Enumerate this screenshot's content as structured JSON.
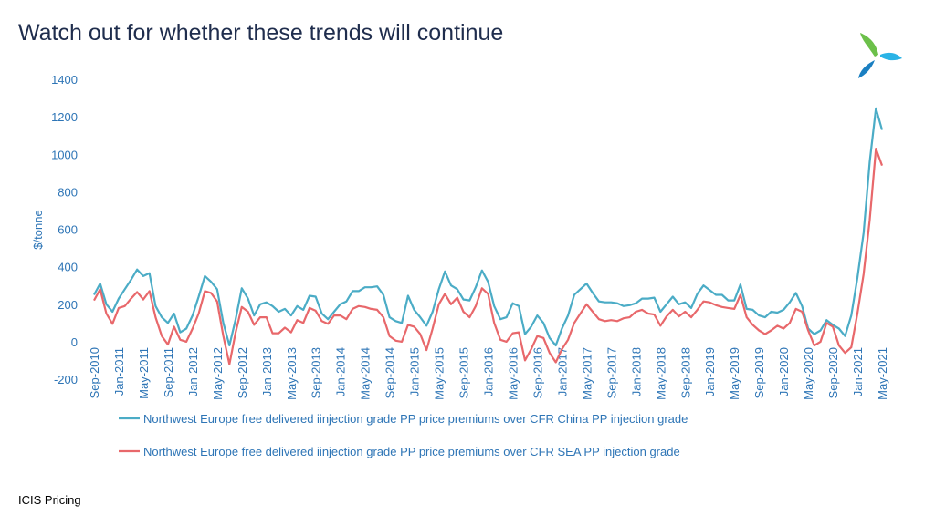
{
  "title": "Watch out for whether these trends will continue",
  "footer": "ICIS Pricing",
  "chart_data": {
    "type": "line",
    "ylabel": "$/tonne",
    "categories": [
      "Sep-2010",
      null,
      null,
      null,
      "Jan-2011",
      null,
      null,
      null,
      "May-2011",
      null,
      null,
      null,
      "Sep-2011",
      null,
      null,
      null,
      "Jan-2012",
      null,
      null,
      null,
      "May-2012",
      null,
      null,
      null,
      "Sep-2012",
      null,
      null,
      null,
      "Jan-2013",
      null,
      null,
      null,
      "May-2013",
      null,
      null,
      null,
      "Sep-2013",
      null,
      null,
      null,
      "Jan-2014",
      null,
      null,
      null,
      "May-2014",
      null,
      null,
      null,
      "Sep-2014",
      null,
      null,
      null,
      "Jan-2015",
      null,
      null,
      null,
      "May-2015",
      null,
      null,
      null,
      "Sep-2015",
      null,
      null,
      null,
      "Jan-2016",
      null,
      null,
      null,
      "May-2016",
      null,
      null,
      null,
      "Sep-2016",
      null,
      null,
      null,
      "Jan-2017",
      null,
      null,
      null,
      "May-2017",
      null,
      null,
      null,
      "Sep-2017",
      null,
      null,
      null,
      "Jan-2018",
      null,
      null,
      null,
      "May-2018",
      null,
      null,
      null,
      "Sep-2018",
      null,
      null,
      null,
      "Jan-2019",
      null,
      null,
      null,
      "May-2019",
      null,
      null,
      null,
      "Sep-2019",
      null,
      null,
      null,
      "Jan-2020",
      null,
      null,
      null,
      "May-2020",
      null,
      null,
      null,
      "Sep-2020",
      null,
      null,
      null,
      "Jan-2021",
      null,
      null,
      null,
      "May-2021"
    ],
    "series": [
      {
        "name": "Northwest Europe free delivered iinjection grade PP price premiums over CFR China PP injection grade",
        "color": "#4bacc6",
        "values": [
          250,
          310,
          200,
          160,
          230,
          280,
          330,
          385,
          350,
          365,
          190,
          130,
          100,
          150,
          50,
          70,
          140,
          240,
          350,
          320,
          280,
          100,
          -20,
          120,
          285,
          230,
          140,
          200,
          210,
          190,
          160,
          175,
          140,
          190,
          170,
          245,
          240,
          150,
          120,
          160,
          200,
          215,
          270,
          270,
          290,
          290,
          295,
          250,
          130,
          110,
          100,
          245,
          170,
          130,
          85,
          160,
          280,
          375,
          300,
          280,
          225,
          220,
          290,
          380,
          320,
          190,
          120,
          130,
          205,
          190,
          40,
          80,
          140,
          100,
          20,
          -20,
          70,
          140,
          250,
          280,
          310,
          260,
          215,
          210,
          210,
          205,
          190,
          195,
          205,
          230,
          230,
          235,
          160,
          200,
          240,
          200,
          210,
          180,
          255,
          300,
          275,
          250,
          250,
          220,
          220,
          305,
          175,
          170,
          140,
          130,
          160,
          155,
          170,
          210,
          260,
          190,
          70,
          40,
          60,
          115,
          90,
          70,
          30,
          140,
          340,
          580,
          960,
          1245,
          1130
        ]
      },
      {
        "name": "Northwest Europe free delivered iinjection grade PP price premiums over CFR SEA PP injection grade",
        "color": "#e8686b",
        "values": [
          220,
          280,
          150,
          95,
          180,
          190,
          230,
          265,
          225,
          270,
          130,
          30,
          -15,
          80,
          10,
          0,
          70,
          150,
          270,
          260,
          215,
          30,
          -120,
          50,
          185,
          160,
          90,
          130,
          130,
          45,
          45,
          75,
          50,
          115,
          100,
          180,
          165,
          110,
          95,
          140,
          140,
          120,
          175,
          190,
          185,
          175,
          170,
          130,
          30,
          5,
          0,
          90,
          80,
          40,
          -45,
          70,
          200,
          255,
          200,
          235,
          160,
          130,
          190,
          285,
          255,
          100,
          10,
          0,
          45,
          50,
          -100,
          -40,
          30,
          20,
          -60,
          -110,
          -40,
          10,
          100,
          150,
          200,
          160,
          120,
          110,
          115,
          110,
          125,
          130,
          160,
          170,
          150,
          145,
          85,
          135,
          170,
          135,
          160,
          130,
          170,
          215,
          210,
          195,
          185,
          180,
          175,
          250,
          130,
          90,
          60,
          40,
          60,
          85,
          70,
          100,
          175,
          160,
          60,
          -20,
          0,
          100,
          80,
          -20,
          -60,
          -30,
          150,
          360,
          650,
          1030,
          940
        ]
      }
    ],
    "ylim": [
      -200,
      1400
    ],
    "yticks": [
      -200,
      0,
      200,
      400,
      600,
      800,
      1000,
      1200,
      1400
    ],
    "grid": false
  }
}
